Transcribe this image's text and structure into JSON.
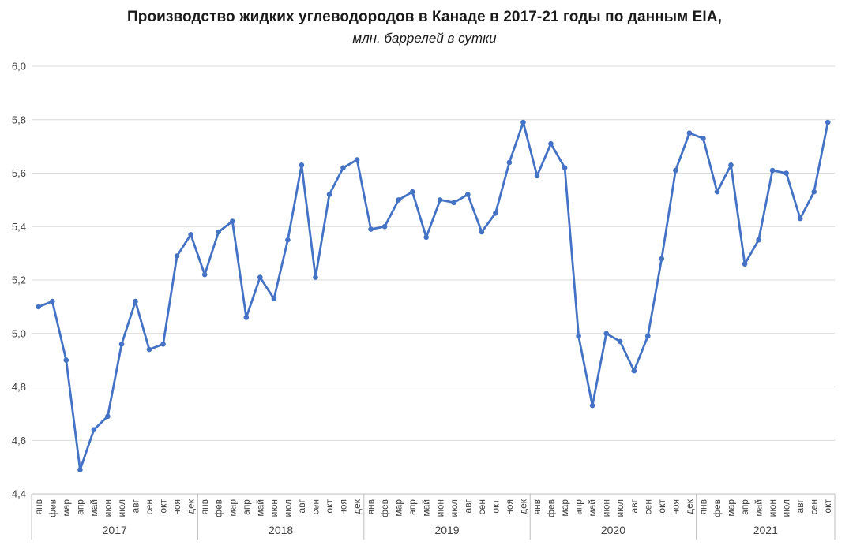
{
  "chart_data": {
    "type": "line",
    "title": "Производство жидких углеводородов в Канаде в 2017-21 годы по данным EIA,",
    "subtitle": "млн. баррелей в сутки",
    "xlabel": "",
    "ylabel": "",
    "ylim": [
      4.4,
      6.0
    ],
    "ytick_step": 0.2,
    "ytick_labels": [
      "6,0",
      "5,8",
      "5,6",
      "5,4",
      "5,2",
      "5,0",
      "4,8",
      "4,6",
      "4,4"
    ],
    "month_labels": [
      "янв",
      "фев",
      "мар",
      "апр",
      "май",
      "июн",
      "июл",
      "авг",
      "сен",
      "окт",
      "ноя",
      "дек"
    ],
    "grid": true,
    "legend_position": "none",
    "marker": "circle",
    "years": [
      {
        "label": "2017",
        "values": [
          5.1,
          5.12,
          4.9,
          4.49,
          4.64,
          4.69,
          4.96,
          5.12,
          4.94,
          4.96,
          5.29,
          5.37
        ]
      },
      {
        "label": "2018",
        "values": [
          5.22,
          5.38,
          5.42,
          5.06,
          5.21,
          5.13,
          5.35,
          5.63,
          5.21,
          5.52,
          5.62,
          5.65
        ]
      },
      {
        "label": "2019",
        "values": [
          5.39,
          5.4,
          5.5,
          5.53,
          5.36,
          5.5,
          5.49,
          5.52,
          5.38,
          5.45,
          5.64,
          5.79
        ]
      },
      {
        "label": "2020",
        "values": [
          5.59,
          5.71,
          5.62,
          4.99,
          4.73,
          5.0,
          4.97,
          4.86,
          4.99,
          5.28,
          5.61,
          5.75
        ]
      },
      {
        "label": "2021",
        "values": [
          5.73,
          5.53,
          5.63,
          5.26,
          5.35,
          5.61,
          5.6,
          5.43,
          5.53,
          5.79
        ]
      }
    ],
    "colors": {
      "line": "#4472C4",
      "marker": "#4472C4",
      "gridline": "#D9D9D9",
      "axis_line": "#BFBFBF",
      "tick_label": "#404040",
      "title": "#1A1A1A"
    }
  }
}
